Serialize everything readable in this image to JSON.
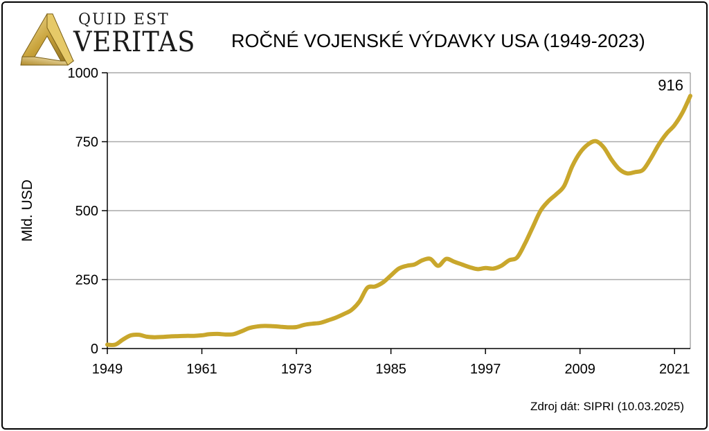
{
  "header": {
    "logo_top": "QUID EST",
    "logo_main": "VERITAS",
    "title": "ROČNÉ VOJENSKÉ VÝDAVKY USA (1949-2023)"
  },
  "source": "Zdroj dát: SIPRI (10.03.2025)",
  "colors": {
    "line": "#C9A72C",
    "grid": "#a9a9a9",
    "logo_gold": "#C8A23A"
  },
  "chart_data": {
    "type": "line",
    "title": "ROČNÉ VOJENSKÉ VÝDAVKY USA (1949-2023)",
    "xlabel": "",
    "ylabel": "Mld. USD",
    "xlim": [
      1949,
      2023
    ],
    "ylim": [
      0,
      1000
    ],
    "x_ticks": [
      1949,
      1961,
      1973,
      1985,
      1997,
      2009,
      2021
    ],
    "y_ticks": [
      0,
      250,
      500,
      750,
      1000
    ],
    "grid": true,
    "annotation": {
      "year": 2023,
      "text": "916"
    },
    "series": [
      {
        "x": [
          1949,
          1950,
          1951,
          1952,
          1953,
          1954,
          1955,
          1956,
          1957,
          1958,
          1959,
          1960,
          1961,
          1962,
          1963,
          1964,
          1965,
          1966,
          1967,
          1968,
          1969,
          1970,
          1971,
          1972,
          1973,
          1974,
          1975,
          1976,
          1977,
          1978,
          1979,
          1980,
          1981,
          1982,
          1983,
          1984,
          1985,
          1986,
          1987,
          1988,
          1989,
          1990,
          1991,
          1992,
          1993,
          1994,
          1995,
          1996,
          1997,
          1998,
          1999,
          2000,
          2001,
          2002,
          2003,
          2004,
          2005,
          2006,
          2007,
          2008,
          2009,
          2010,
          2011,
          2012,
          2013,
          2014,
          2015,
          2016,
          2017,
          2018,
          2019,
          2020,
          2021,
          2022,
          2023
        ],
        "values": [
          14,
          14,
          33,
          48,
          50,
          43,
          41,
          42,
          44,
          45,
          46,
          46,
          48,
          52,
          53,
          51,
          52,
          62,
          74,
          80,
          82,
          81,
          79,
          77,
          78,
          86,
          90,
          93,
          102,
          112,
          125,
          140,
          170,
          220,
          225,
          240,
          265,
          290,
          300,
          305,
          320,
          325,
          300,
          325,
          315,
          305,
          295,
          288,
          292,
          290,
          300,
          320,
          330,
          380,
          440,
          500,
          535,
          560,
          590,
          660,
          710,
          740,
          752,
          730,
          685,
          650,
          635,
          640,
          648,
          690,
          740,
          780,
          810,
          855,
          916
        ]
      }
    ]
  }
}
